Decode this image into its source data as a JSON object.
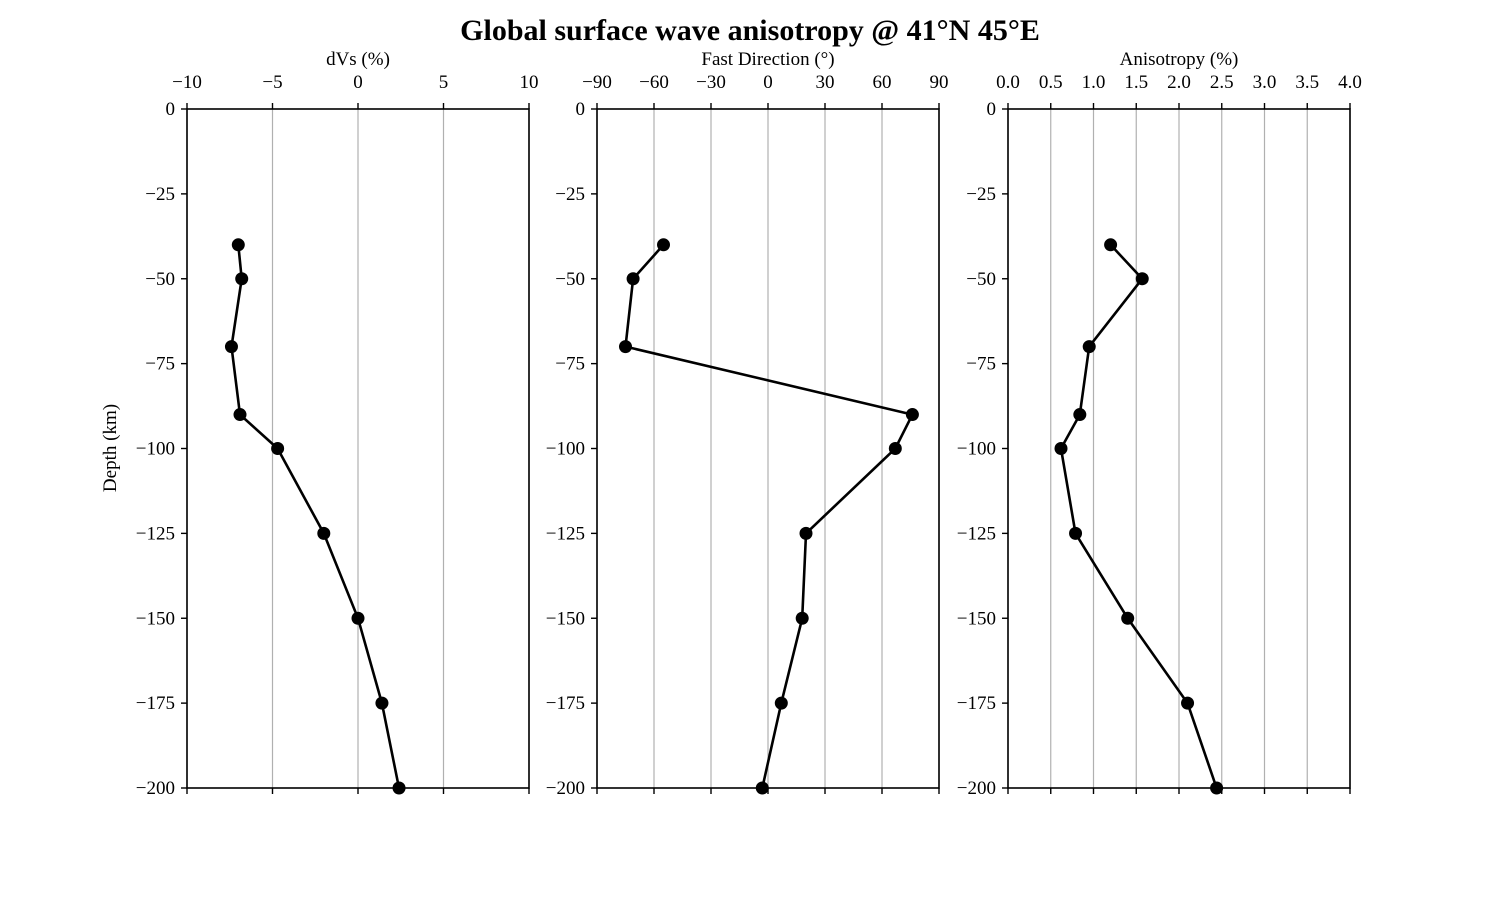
{
  "chart_data": [
    {
      "type": "line",
      "title": "Global surface wave anisotropy @ 41°N 45°E",
      "xlabel": "dVs (%)",
      "ylabel": "Depth (km)",
      "xlim": [
        -10,
        10
      ],
      "ylim": [
        -200,
        0
      ],
      "xticks": [
        -10,
        -5,
        0,
        5,
        10
      ],
      "xtick_labels": [
        "−10",
        "−5",
        "0",
        "5",
        "10"
      ],
      "yticks": [
        0,
        -25,
        -50,
        -75,
        -100,
        -125,
        -150,
        -175,
        -200
      ],
      "ytick_labels": [
        "0",
        "−25",
        "−50",
        "−75",
        "−100",
        "−125",
        "−150",
        "−175",
        "−200"
      ],
      "grid": "vertical",
      "x_axis_position": "top",
      "points": [
        {
          "x": -7.0,
          "y": -40
        },
        {
          "x": -6.8,
          "y": -50
        },
        {
          "x": -7.4,
          "y": -70
        },
        {
          "x": -6.9,
          "y": -90
        },
        {
          "x": -4.7,
          "y": -100
        },
        {
          "x": -2.0,
          "y": -125
        },
        {
          "x": 0.0,
          "y": -150
        },
        {
          "x": 1.4,
          "y": -175
        },
        {
          "x": 2.4,
          "y": -200
        }
      ]
    },
    {
      "type": "line",
      "xlabel": "Fast Direction (°)",
      "xlim": [
        -90,
        90
      ],
      "ylim": [
        -200,
        0
      ],
      "xticks": [
        -90,
        -60,
        -30,
        0,
        30,
        60,
        90
      ],
      "xtick_labels": [
        "−90",
        "−60",
        "−30",
        "0",
        "30",
        "60",
        "90"
      ],
      "yticks": [
        0,
        -25,
        -50,
        -75,
        -100,
        -125,
        -150,
        -175,
        -200
      ],
      "ytick_labels": [
        "0",
        "−25",
        "−50",
        "−75",
        "−100",
        "−125",
        "−150",
        "−175",
        "−200"
      ],
      "grid": "vertical",
      "x_axis_position": "top",
      "points": [
        {
          "x": -55,
          "y": -40
        },
        {
          "x": -71,
          "y": -50
        },
        {
          "x": -75,
          "y": -70
        },
        {
          "x": 76,
          "y": -90
        },
        {
          "x": 67,
          "y": -100
        },
        {
          "x": 20,
          "y": -125
        },
        {
          "x": 18,
          "y": -150
        },
        {
          "x": 7,
          "y": -175
        },
        {
          "x": -3,
          "y": -200
        }
      ]
    },
    {
      "type": "line",
      "xlabel": "Anisotropy (%)",
      "xlim": [
        0,
        4
      ],
      "ylim": [
        -200,
        0
      ],
      "xticks": [
        0,
        0.5,
        1,
        1.5,
        2,
        2.5,
        3,
        3.5,
        4
      ],
      "xtick_labels": [
        "0.0",
        "0.5",
        "1.0",
        "1.5",
        "2.0",
        "2.5",
        "3.0",
        "3.5",
        "4.0"
      ],
      "yticks": [
        0,
        -25,
        -50,
        -75,
        -100,
        -125,
        -150,
        -175,
        -200
      ],
      "ytick_labels": [
        "0",
        "−25",
        "−50",
        "−75",
        "−100",
        "−125",
        "−150",
        "−175",
        "−200"
      ],
      "grid": "vertical",
      "x_axis_position": "top",
      "points": [
        {
          "x": 1.2,
          "y": -40
        },
        {
          "x": 1.57,
          "y": -50
        },
        {
          "x": 0.95,
          "y": -70
        },
        {
          "x": 0.84,
          "y": -90
        },
        {
          "x": 0.62,
          "y": -100
        },
        {
          "x": 0.79,
          "y": -125
        },
        {
          "x": 1.4,
          "y": -150
        },
        {
          "x": 2.1,
          "y": -175
        },
        {
          "x": 2.44,
          "y": -200
        }
      ]
    }
  ]
}
